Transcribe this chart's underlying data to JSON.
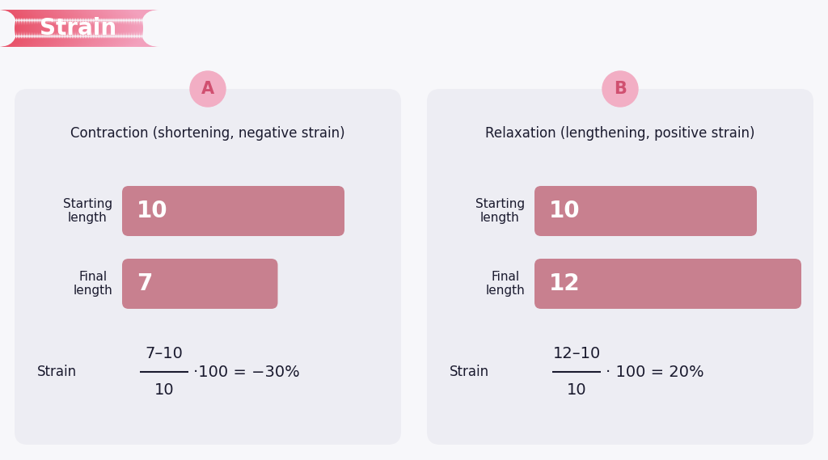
{
  "bg_color": "#f7f7fa",
  "panel_bg": "#ededf3",
  "bar_color": "#c8808f",
  "title_label": "Strain",
  "panel_A_title": "Contraction (shortening, negative strain)",
  "panel_B_title": "Relaxation (lengthening, positive strain)",
  "label_A": "A",
  "label_B": "B",
  "circle_color": "#f2aec4",
  "panel_A_bars": [
    10,
    7
  ],
  "panel_B_bars": [
    10,
    12
  ],
  "bar_labels_A": [
    "10",
    "7"
  ],
  "bar_labels_B": [
    "10",
    "12"
  ],
  "row_labels": [
    "Starting\nlength",
    "Final\nlength"
  ],
  "strain_label": "Strain",
  "formula_A_num": "7–10",
  "formula_A_den": "10",
  "formula_A_rest": "·100 = −30%",
  "formula_B_num": "12–10",
  "formula_B_den": "10",
  "formula_B_rest": "· 100 = 20%",
  "text_color": "#1a1a2e",
  "white": "#ffffff",
  "pill_color_left": "#e8536a",
  "pill_color_right": "#f0a0b8"
}
